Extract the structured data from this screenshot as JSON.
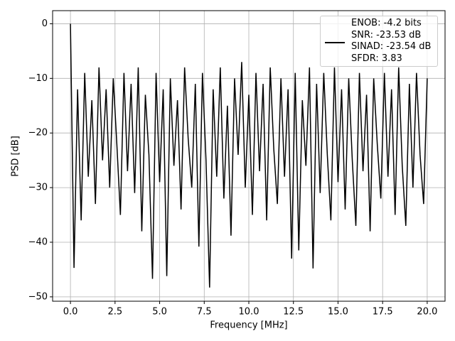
{
  "chart_data": {
    "type": "line",
    "xlabel": "Frequency [MHz]",
    "ylabel": "PSD [dB]",
    "x": [
      0,
      0.2,
      0.4,
      0.6,
      0.8,
      1,
      1.2,
      1.4,
      1.6,
      1.8,
      2,
      2.2,
      2.4,
      2.6,
      2.8,
      3,
      3.2,
      3.4,
      3.6,
      3.8,
      4,
      4.2,
      4.4,
      4.6,
      4.8,
      5,
      5.2,
      5.4,
      5.6,
      5.8,
      6,
      6.2,
      6.4,
      6.6,
      6.8,
      7,
      7.2,
      7.4,
      7.6,
      7.8,
      8,
      8.2,
      8.4,
      8.6,
      8.8,
      9,
      9.2,
      9.4,
      9.6,
      9.8,
      10,
      10.2,
      10.4,
      10.6,
      10.8,
      11,
      11.2,
      11.4,
      11.6,
      11.8,
      12,
      12.2,
      12.4,
      12.6,
      12.8,
      13,
      13.2,
      13.4,
      13.6,
      13.8,
      14,
      14.2,
      14.4,
      14.6,
      14.8,
      15,
      15.2,
      15.4,
      15.6,
      15.8,
      16,
      16.2,
      16.4,
      16.6,
      16.8,
      17,
      17.2,
      17.4,
      17.6,
      17.8,
      18,
      18.2,
      18.4,
      18.6,
      18.8,
      19,
      19.2,
      19.4,
      19.6,
      19.8,
      20
    ],
    "series": [
      {
        "name": "ENOB: -4.2 bits\nSNR: -23.53 dB\nSINAD: -23.54 dB\nSFDR: 3.83",
        "color": "#000000",
        "values": [
          0,
          -44.7,
          -12,
          -36,
          -9,
          -28,
          -14,
          -33,
          -8,
          -25,
          -12,
          -30,
          -10,
          -22,
          -35,
          -9,
          -27,
          -11,
          -31,
          -8,
          -38,
          -13,
          -24,
          -46.7,
          -9,
          -29,
          -12,
          -46.2,
          -10,
          -26,
          -14,
          -34,
          -8,
          -21,
          -30,
          -11,
          -40.8,
          -9,
          -25,
          -48.3,
          -12,
          -28,
          -8,
          -32,
          -15,
          -38.8,
          -10,
          -24,
          -7,
          -30,
          -13,
          -35,
          -9,
          -27,
          -11,
          -36,
          -8,
          -23,
          -33,
          -10,
          -28,
          -12,
          -43,
          -9,
          -41.5,
          -14,
          -26,
          -8,
          -44.8,
          -11,
          -31,
          -9,
          -24,
          -36,
          -8,
          -29,
          -12,
          -34,
          -10,
          -25,
          -37,
          -9,
          -27,
          -13,
          -38,
          -10,
          -22,
          -32,
          -9,
          -28,
          -12,
          -35,
          -8,
          -26,
          -37,
          -11,
          -30,
          -9,
          -24,
          -33,
          -10
        ]
      }
    ],
    "xlim": [
      -1,
      21
    ],
    "xticks": [
      {
        "value": 0,
        "label": "0.0"
      },
      2.5,
      {
        "value": 5,
        "label": "5.0"
      },
      7.5,
      {
        "value": 10,
        "label": "10.0"
      },
      12.5,
      {
        "value": 15,
        "label": "15.0"
      },
      17.5,
      {
        "value": 20,
        "label": "20.0"
      }
    ],
    "ylim": [
      -50.8,
      2.4
    ],
    "yticks": [
      {
        "value": -50,
        "label": "−50"
      },
      {
        "value": -40,
        "label": "−40"
      },
      {
        "value": -30,
        "label": "−30"
      },
      {
        "value": -20,
        "label": "−20"
      },
      {
        "value": -10,
        "label": "−10"
      },
      0
    ],
    "grid": true,
    "legend": "upper right"
  }
}
